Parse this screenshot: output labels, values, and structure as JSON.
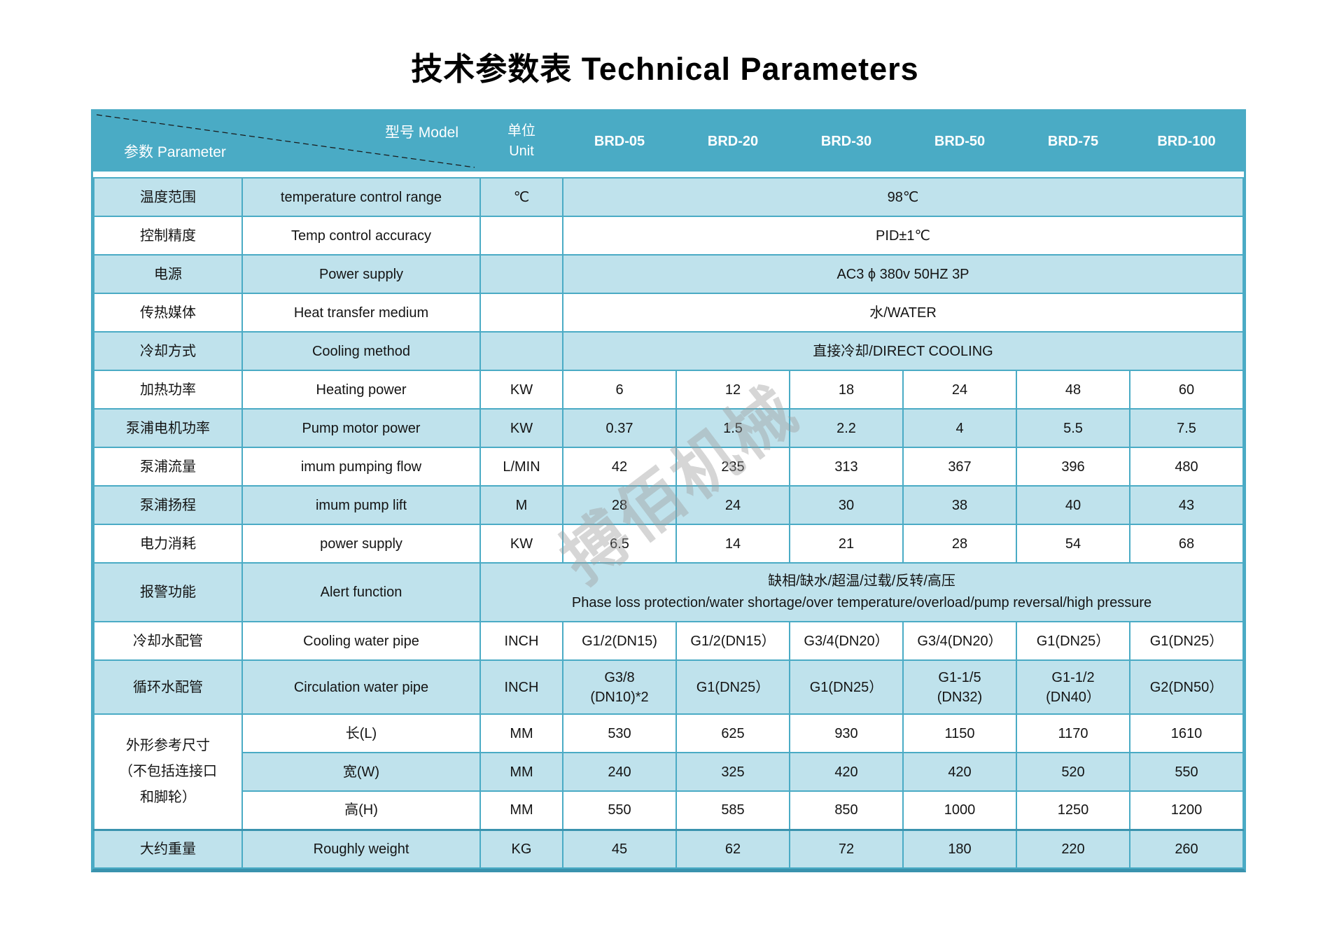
{
  "title": "技术参数表 Technical Parameters",
  "watermark": "搏佰机械",
  "colors": {
    "header_teal": "#4aabc5",
    "row_light_blue": "#bfe2ec",
    "border_teal": "#4aabc5",
    "border_dark_teal": "#3a93ae",
    "header_text": "#ffffff",
    "body_text": "#141414"
  },
  "header": {
    "model_label": "型号 Model",
    "param_label": "参数 Parameter",
    "unit_cn": "单位",
    "unit_en": "Unit",
    "models": [
      "BRD-05",
      "BRD-20",
      "BRD-30",
      "BRD-50",
      "BRD-75",
      "BRD-100"
    ]
  },
  "rows": [
    {
      "kind": "merged",
      "tone": "blue",
      "cn": "温度范围",
      "en": "temperature control range",
      "unit": "℃",
      "value": "98℃"
    },
    {
      "kind": "merged",
      "tone": "white",
      "cn": "控制精度",
      "en": "Temp control accuracy",
      "unit": "",
      "value": "PID±1℃"
    },
    {
      "kind": "merged",
      "tone": "blue",
      "cn": "电源",
      "en": "Power supply",
      "unit": "",
      "value": "AC3 ϕ 380v 50HZ 3P"
    },
    {
      "kind": "merged",
      "tone": "white",
      "cn": "传热媒体",
      "en": "Heat transfer medium",
      "unit": "",
      "value": "水/WATER"
    },
    {
      "kind": "merged",
      "tone": "blue",
      "cn": "冷却方式",
      "en": "Cooling method",
      "unit": "",
      "value": "直接冷却/DIRECT COOLING"
    },
    {
      "kind": "values",
      "tone": "white",
      "cn": "加热功率",
      "en": "Heating power",
      "unit": "KW",
      "values": [
        "6",
        "12",
        "18",
        "24",
        "48",
        "60"
      ]
    },
    {
      "kind": "values",
      "tone": "blue",
      "cn": "泵浦电机功率",
      "en": "Pump motor power",
      "unit": "KW",
      "values": [
        "0.37",
        "1.5",
        "2.2",
        "4",
        "5.5",
        "7.5"
      ]
    },
    {
      "kind": "values",
      "tone": "white",
      "cn": "泵浦流量",
      "en": "imum pumping flow",
      "unit": "L/MIN",
      "values": [
        "42",
        "235",
        "313",
        "367",
        "396",
        "480"
      ]
    },
    {
      "kind": "values",
      "tone": "blue",
      "cn": "泵浦扬程",
      "en": "imum pump lift",
      "unit": "M",
      "values": [
        "28",
        "24",
        "30",
        "38",
        "40",
        "43"
      ]
    },
    {
      "kind": "values",
      "tone": "white",
      "cn": "电力消耗",
      "en": "power supply",
      "unit": "KW",
      "values": [
        "6.5",
        "14",
        "21",
        "28",
        "54",
        "68"
      ]
    },
    {
      "kind": "alert",
      "tone": "blue",
      "cn": "报警功能",
      "en": "Alert function",
      "lines": [
        "缺相/缺水/超温/过载/反转/高压",
        "Phase loss protection/water shortage/over temperature/overload/pump reversal/high pressure"
      ]
    },
    {
      "kind": "values",
      "tone": "white",
      "cn": "冷却水配管",
      "en": "Cooling water pipe",
      "unit": "INCH",
      "values": [
        "G1/2(DN15)",
        "G1/2(DN15）",
        "G3/4(DN20）",
        "G3/4(DN20）",
        "G1(DN25）",
        "G1(DN25）"
      ]
    },
    {
      "kind": "values",
      "tone": "blue",
      "tall": true,
      "cn": "循环水配管",
      "en": "Circulation water pipe",
      "unit": "INCH",
      "values": [
        "G3/8\n(DN10)*2",
        "G1(DN25）",
        "G1(DN25）",
        "G1-1/5\n(DN32)",
        "G1-1/2\n(DN40）",
        "G2(DN50）"
      ]
    },
    {
      "kind": "dims",
      "cn": "外形参考尺寸（不包括连接口和脚轮）",
      "subs": [
        {
          "tone": "white",
          "label": "长(L)",
          "unit": "MM",
          "values": [
            "530",
            "625",
            "930",
            "1150",
            "1170",
            "1610"
          ]
        },
        {
          "tone": "blue",
          "label": "宽(W)",
          "unit": "MM",
          "values": [
            "240",
            "325",
            "420",
            "420",
            "520",
            "550"
          ]
        },
        {
          "tone": "white",
          "label": "高(H)",
          "unit": "MM",
          "values": [
            "550",
            "585",
            "850",
            "1000",
            "1250",
            "1200"
          ]
        }
      ]
    },
    {
      "kind": "values",
      "tone": "blue",
      "thick_top": true,
      "cn": "大约重量",
      "en": "Roughly weight",
      "unit": "KG",
      "values": [
        "45",
        "62",
        "72",
        "180",
        "220",
        "260"
      ]
    }
  ]
}
